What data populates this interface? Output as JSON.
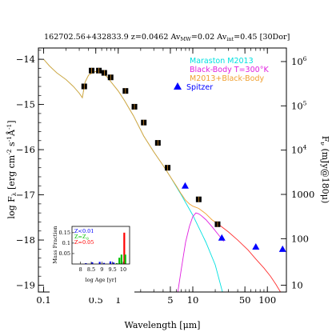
{
  "chart_data": {
    "type": "line",
    "title": "162702.56+432833.9 z=0.0462 Av",
    "title_parts": {
      "id": "162702.56+432833.9",
      "redshift": "z=0.0462",
      "av_mw_prefix": "Av",
      "av_mw_sub": "MW",
      "av_mw_value": "=0.02",
      "av_int_prefix": "Av",
      "av_int_sub": "int",
      "av_int_value": "=0.45",
      "template": "[30Dor]"
    },
    "xlabel": "Wavelength [μm]",
    "ylabel": "log F",
    "ylabel_sub": "λ",
    "ylabel_units": "[erg cm",
    "ylabel_units_exp1": "-2",
    "ylabel_units_mid": " s",
    "ylabel_units_exp2": "-1",
    "ylabel_units_end": "Å",
    "ylabel_units_exp3": "-1",
    "ylabel_close": "]",
    "y2label": "F",
    "y2label_sub": "ν",
    "y2label_units": "(mJy@180μ)",
    "xscale": "log",
    "xlim": [
      0.085,
      180
    ],
    "ylim": [
      -19.15,
      -13.75
    ],
    "x_ticks": [
      0.1,
      0.5,
      1,
      5,
      10,
      50,
      100
    ],
    "x_tick_labels": [
      "0.1",
      "0.5",
      "1",
      "5",
      "10",
      "50",
      "100"
    ],
    "y_ticks": [
      -14,
      -15,
      -16,
      -17,
      -18,
      -19
    ],
    "y_tick_labels": [
      "−14",
      "−15",
      "−16",
      "−17",
      "−18",
      "−19"
    ],
    "y2_ticks": [
      {
        "label": "10",
        "exp": "6",
        "y": -14.05
      },
      {
        "label": "10",
        "exp": "5",
        "y": -15.03
      },
      {
        "label": "10",
        "exp": "4",
        "y": -16.01
      },
      {
        "label": "1000",
        "exp": "",
        "y": -16.99
      },
      {
        "label": "100",
        "exp": "",
        "y": -17.97
      },
      {
        "label": "10",
        "exp": "",
        "y": -19.0
      }
    ],
    "legend": [
      {
        "label": "Maraston M2013",
        "color": "#00e0e0"
      },
      {
        "label": "Black-Body T=300°K",
        "color": "#e020e0"
      },
      {
        "label": "M2013+Black-Body",
        "color": "#f0a030"
      },
      {
        "label": "Spitzer",
        "color": "#0000ff",
        "marker": "triangle"
      }
    ],
    "series": [
      {
        "name": "Maraston M2013",
        "color": "#00e0e0",
        "x": [
          0.1,
          0.12,
          0.15,
          0.2,
          0.25,
          0.3,
          0.33,
          0.36,
          0.4,
          0.45,
          0.5,
          0.6,
          0.7,
          0.8,
          1.0,
          1.2,
          1.6,
          2.2,
          3.0,
          4.0,
          5.0,
          7.0,
          10,
          15,
          20,
          25
        ],
        "y": [
          -14.0,
          -14.15,
          -14.3,
          -14.45,
          -14.6,
          -14.75,
          -14.85,
          -14.5,
          -14.35,
          -14.3,
          -14.27,
          -14.3,
          -14.38,
          -14.5,
          -14.7,
          -14.9,
          -15.25,
          -15.7,
          -16.05,
          -16.35,
          -16.6,
          -17.0,
          -17.45,
          -18.05,
          -18.55,
          -19.15
        ]
      },
      {
        "name": "Black-Body T=300°K",
        "color": "#e020e0",
        "x": [
          6.3,
          7.0,
          8.0,
          9.0,
          10.0,
          11.0,
          12.0,
          13.0,
          15.0,
          18.0,
          22.0,
          26.0
        ],
        "y": [
          -19.15,
          -18.65,
          -18.05,
          -17.7,
          -17.48,
          -17.4,
          -17.42,
          -17.46,
          -17.55,
          -17.7,
          -17.88,
          -18.03
        ]
      },
      {
        "name": "M2013+Black-Body",
        "color": "#f0a030",
        "x": [
          0.1,
          0.12,
          0.15,
          0.2,
          0.25,
          0.3,
          0.33,
          0.36,
          0.4,
          0.45,
          0.5,
          0.6,
          0.7,
          0.8,
          1.0,
          1.2,
          1.6,
          2.2,
          3.0,
          4.0,
          5.0,
          6.0,
          7.0,
          8.0,
          9.0,
          10,
          12,
          15,
          18,
          22
        ],
        "y": [
          -14.0,
          -14.15,
          -14.3,
          -14.45,
          -14.6,
          -14.75,
          -14.85,
          -14.5,
          -14.35,
          -14.3,
          -14.27,
          -14.3,
          -14.38,
          -14.5,
          -14.7,
          -14.9,
          -15.25,
          -15.7,
          -16.05,
          -16.35,
          -16.6,
          -16.8,
          -16.98,
          -17.12,
          -17.2,
          -17.25,
          -17.3,
          -17.42,
          -17.55,
          -17.65
        ]
      },
      {
        "name": "",
        "color": "#ff3030",
        "x": [
          22,
          30,
          40,
          55,
          70,
          90,
          110,
          130,
          150
        ],
        "y": [
          -17.65,
          -17.82,
          -18.0,
          -18.22,
          -18.42,
          -18.62,
          -18.8,
          -18.98,
          -19.15
        ]
      }
    ],
    "points": [
      {
        "x": 0.35,
        "y": -14.6
      },
      {
        "x": 0.44,
        "y": -14.25
      },
      {
        "x": 0.55,
        "y": -14.25
      },
      {
        "x": 0.65,
        "y": -14.3
      },
      {
        "x": 0.79,
        "y": -14.4
      },
      {
        "x": 1.25,
        "y": -14.7
      },
      {
        "x": 1.65,
        "y": -15.05
      },
      {
        "x": 2.2,
        "y": -15.4
      },
      {
        "x": 3.4,
        "y": -15.85
      },
      {
        "x": 4.6,
        "y": -16.4
      },
      {
        "x": 12.0,
        "y": -17.1
      },
      {
        "x": 21.5,
        "y": -17.65
      }
    ],
    "spitzer_points": [
      {
        "x": 7.9,
        "y": -16.8
      },
      {
        "x": 24.5,
        "y": -17.95
      },
      {
        "x": 70,
        "y": -18.15
      },
      {
        "x": 160,
        "y": -18.2
      }
    ],
    "inset": {
      "xlabel": "log Age [yr]",
      "ylabel": "Mass Fraction",
      "xlim": [
        7.6,
        10.3
      ],
      "ylim": [
        0,
        0.18
      ],
      "x_ticks": [
        8,
        8.5,
        9,
        9.5,
        10
      ],
      "x_tick_labels": [
        "8",
        "8.5",
        "9",
        "9.5",
        "10"
      ],
      "y_ticks": [
        0.05,
        0.1,
        0.15
      ],
      "y_tick_labels": [
        "0.05",
        "0.1",
        "0.15"
      ],
      "legend": [
        {
          "label": "Z<0.01",
          "color": "#0000ff"
        },
        {
          "label": "Z=Z",
          "sub": "⊙",
          "color": "#00c000"
        },
        {
          "label": "Z=0.05",
          "color": "#ff0000"
        }
      ],
      "bars": [
        {
          "x": 8.25,
          "value": 0.004,
          "color": "#0000ff"
        },
        {
          "x": 8.55,
          "value": 0.008,
          "color": "#0000ff"
        },
        {
          "x": 8.9,
          "value": 0.01,
          "color": "#0000ff"
        },
        {
          "x": 9.1,
          "value": 0.005,
          "color": "#0000ff"
        },
        {
          "x": 9.4,
          "value": 0.012,
          "color": "#0000ff"
        },
        {
          "x": 9.55,
          "value": 0.007,
          "color": "#0000ff"
        },
        {
          "x": 9.7,
          "value": 0.004,
          "color": "#00c000"
        },
        {
          "x": 9.82,
          "value": 0.03,
          "color": "#00c000"
        },
        {
          "x": 9.92,
          "value": 0.045,
          "color": "#00c000"
        },
        {
          "x": 10.05,
          "value": 0.15,
          "color": "#ff0000"
        },
        {
          "x": 10.1,
          "value": 0.045,
          "color": "#00c000"
        }
      ]
    }
  }
}
